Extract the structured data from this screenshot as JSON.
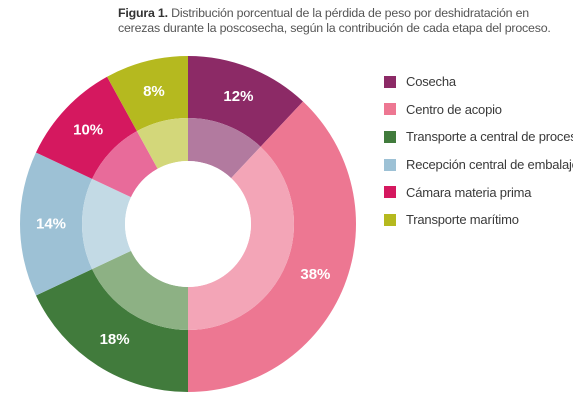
{
  "figure": {
    "label": "Figura 1.",
    "caption": "Distribución porcentual de la pérdida de peso por deshidratación en cerezas durante la poscosecha, según la contribución de cada etapa del proceso."
  },
  "chart_data": {
    "type": "pie",
    "title": "",
    "series": [
      {
        "name": "Cosecha",
        "value": 12,
        "label": "12%",
        "color": "#8c2a66",
        "inner_color": "#b27a9f"
      },
      {
        "name": "Centro de acopio",
        "value": 38,
        "label": "38%",
        "color": "#ed7792",
        "inner_color": "#f3a5b7"
      },
      {
        "name": "Transporte a central de proceso",
        "value": 18,
        "label": "18%",
        "color": "#417b3c",
        "inner_color": "#8db184"
      },
      {
        "name": "Recepción central de embalaje",
        "value": 14,
        "label": "14%",
        "color": "#9dc1d5",
        "inner_color": "#c3dae5"
      },
      {
        "name": "Cámara materia prima",
        "value": 10,
        "label": "10%",
        "color": "#d5185f",
        "inner_color": "#e86b9a"
      },
      {
        "name": "Transporte marítimo",
        "value": 8,
        "label": "8%",
        "color": "#b5b91f",
        "inner_color": "#d3d77a"
      }
    ],
    "legend_position": "right"
  }
}
